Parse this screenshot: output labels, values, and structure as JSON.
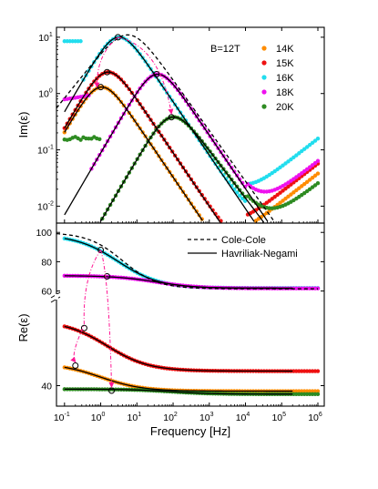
{
  "chart_data": {
    "type": "scatter",
    "xlabel": "Frequency [Hz]",
    "xscale": "log",
    "xlim": [
      0.06,
      1500000
    ],
    "x_ticks": [
      "10-1",
      "100",
      "101",
      "102",
      "103",
      "104",
      "105",
      "106"
    ],
    "panels": [
      {
        "id": "top",
        "ylabel": "Im(ε)",
        "yscale": "log",
        "ylim": [
          0.005,
          15
        ],
        "y_ticks": [
          "10-2",
          "10-1",
          "100",
          "101"
        ],
        "annotation": "B=12T",
        "legend_placement": "top-right"
      },
      {
        "id": "bottom",
        "ylabel": "Re(ε)",
        "yscale": "broken-linear",
        "ylim": [
          37,
          102
        ],
        "y_ticks": [
          "40",
          "60",
          "80",
          "100"
        ],
        "legend_placement": "top-right"
      }
    ],
    "series": [
      {
        "name": "14K",
        "color": "#ff8c00",
        "marker": "circle",
        "im_peak": {
          "f": 1.0,
          "value": 1.3
        },
        "re_low": 44.5,
        "re_high": 38.9
      },
      {
        "name": "15K",
        "color": "#ee1111",
        "marker": "circle",
        "im_peak": {
          "f": 1.5,
          "value": 2.4
        },
        "re_low": 53.0,
        "re_high": 42.9
      },
      {
        "name": "16K",
        "color": "#22ddee",
        "marker": "circle",
        "im_peak": {
          "f": 3.0,
          "value": 10.0
        },
        "re_low": 98.5,
        "re_high": 62.0
      },
      {
        "name": "18K",
        "color": "#ee11ee",
        "marker": "circle",
        "im_peak": {
          "f": 35,
          "value": 2.2
        },
        "re_low": 70.5,
        "re_high": 61.8
      },
      {
        "name": "20K",
        "color": "#2e8b22",
        "marker": "circle",
        "im_peak": {
          "f": 90,
          "value": 0.38
        },
        "re_low": 39.3,
        "re_high": 38.3
      }
    ],
    "fit_legend": [
      {
        "name": "Cole-Cole",
        "style": "dashed"
      },
      {
        "name": "Havriliak-Negami",
        "style": "solid"
      }
    ]
  }
}
